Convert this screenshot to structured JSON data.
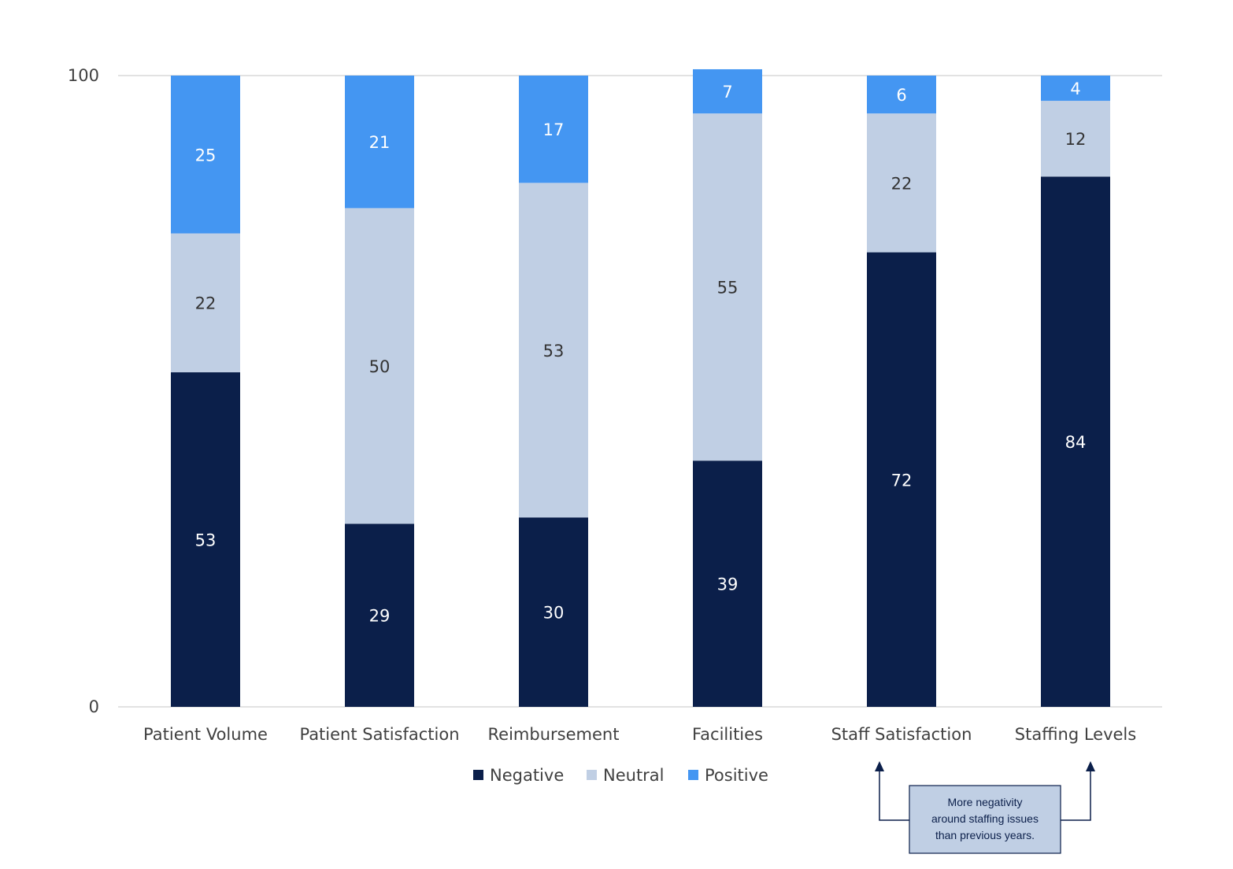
{
  "chart_data": {
    "type": "bar",
    "stacked": true,
    "categories": [
      "Patient Volume",
      "Patient Satisfaction",
      "Reimbursement",
      "Facilities",
      "Staff Satisfaction",
      "Staffing Levels"
    ],
    "series": [
      {
        "name": "Negative",
        "color": "#0b1f4a",
        "label_color": "#ffffff",
        "values": [
          53,
          29,
          30,
          39,
          72,
          84
        ]
      },
      {
        "name": "Neutral",
        "color": "#c0cfe4",
        "label_color": "#333333",
        "values": [
          22,
          50,
          53,
          55,
          22,
          12
        ]
      },
      {
        "name": "Positive",
        "color": "#4496f2",
        "label_color": "#ffffff",
        "values": [
          25,
          21,
          17,
          7,
          6,
          4
        ]
      }
    ],
    "ylim": [
      0,
      100
    ],
    "yticks": [
      "0",
      "100"
    ],
    "grid": false,
    "legend_position": "bottom",
    "annotation": {
      "lines": [
        "More negativity",
        "around staffing issues",
        "than previous years."
      ],
      "points_to": [
        "Staff Satisfaction",
        "Staffing Levels"
      ],
      "box_color": "#c0cfe4",
      "border_color": "#0b1f4a"
    }
  }
}
